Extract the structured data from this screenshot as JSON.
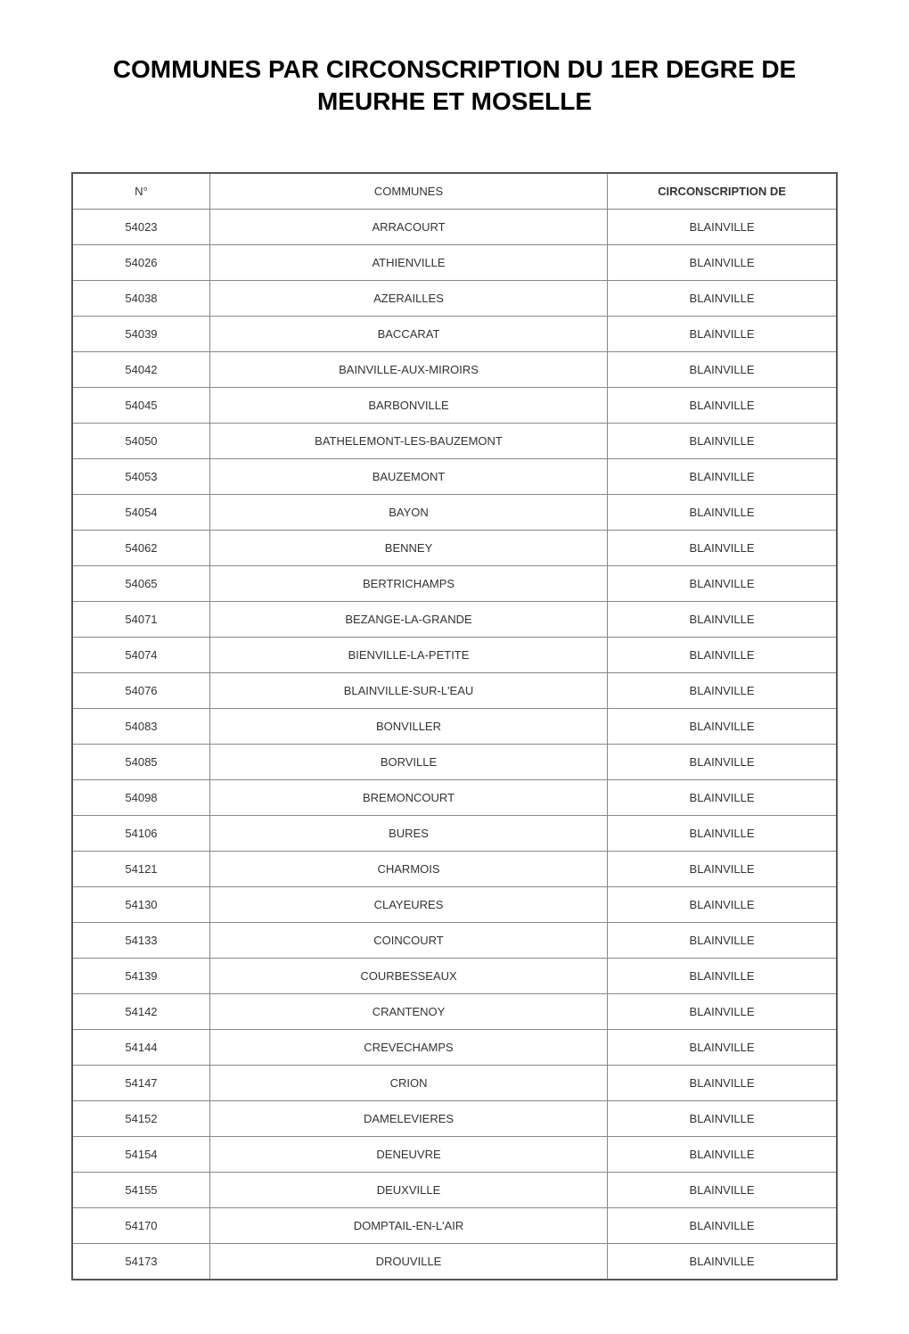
{
  "title": "COMMUNES PAR CIRCONSCRIPTION DU 1ER DEGRE DE MEURHE ET MOSELLE",
  "table": {
    "columns": [
      "N°",
      "COMMUNES",
      "CIRCONSCRIPTION DE"
    ],
    "column_widths": [
      "18%",
      "52%",
      "30%"
    ],
    "header_bold": [
      false,
      false,
      true
    ],
    "rows": [
      [
        "54023",
        "ARRACOURT",
        "BLAINVILLE"
      ],
      [
        "54026",
        "ATHIENVILLE",
        "BLAINVILLE"
      ],
      [
        "54038",
        "AZERAILLES",
        "BLAINVILLE"
      ],
      [
        "54039",
        "BACCARAT",
        "BLAINVILLE"
      ],
      [
        "54042",
        "BAINVILLE-AUX-MIROIRS",
        "BLAINVILLE"
      ],
      [
        "54045",
        "BARBONVILLE",
        "BLAINVILLE"
      ],
      [
        "54050",
        "BATHELEMONT-LES-BAUZEMONT",
        "BLAINVILLE"
      ],
      [
        "54053",
        "BAUZEMONT",
        "BLAINVILLE"
      ],
      [
        "54054",
        "BAYON",
        "BLAINVILLE"
      ],
      [
        "54062",
        "BENNEY",
        "BLAINVILLE"
      ],
      [
        "54065",
        "BERTRICHAMPS",
        "BLAINVILLE"
      ],
      [
        "54071",
        "BEZANGE-LA-GRANDE",
        "BLAINVILLE"
      ],
      [
        "54074",
        "BIENVILLE-LA-PETITE",
        "BLAINVILLE"
      ],
      [
        "54076",
        "BLAINVILLE-SUR-L'EAU",
        "BLAINVILLE"
      ],
      [
        "54083",
        "BONVILLER",
        "BLAINVILLE"
      ],
      [
        "54085",
        "BORVILLE",
        "BLAINVILLE"
      ],
      [
        "54098",
        "BREMONCOURT",
        "BLAINVILLE"
      ],
      [
        "54106",
        "BURES",
        "BLAINVILLE"
      ],
      [
        "54121",
        "CHARMOIS",
        "BLAINVILLE"
      ],
      [
        "54130",
        "CLAYEURES",
        "BLAINVILLE"
      ],
      [
        "54133",
        "COINCOURT",
        "BLAINVILLE"
      ],
      [
        "54139",
        "COURBESSEAUX",
        "BLAINVILLE"
      ],
      [
        "54142",
        "CRANTENOY",
        "BLAINVILLE"
      ],
      [
        "54144",
        "CREVECHAMPS",
        "BLAINVILLE"
      ],
      [
        "54147",
        "CRION",
        "BLAINVILLE"
      ],
      [
        "54152",
        "DAMELEVIERES",
        "BLAINVILLE"
      ],
      [
        "54154",
        "DENEUVRE",
        "BLAINVILLE"
      ],
      [
        "54155",
        "DEUXVILLE",
        "BLAINVILLE"
      ],
      [
        "54170",
        "DOMPTAIL-EN-L'AIR",
        "BLAINVILLE"
      ],
      [
        "54173",
        "DROUVILLE",
        "BLAINVILLE"
      ]
    ],
    "border_color": "#888888",
    "outer_border_color": "#555555",
    "text_color": "#333333",
    "background_color": "#ffffff",
    "cell_fontsize": 13,
    "title_fontsize": 28
  }
}
